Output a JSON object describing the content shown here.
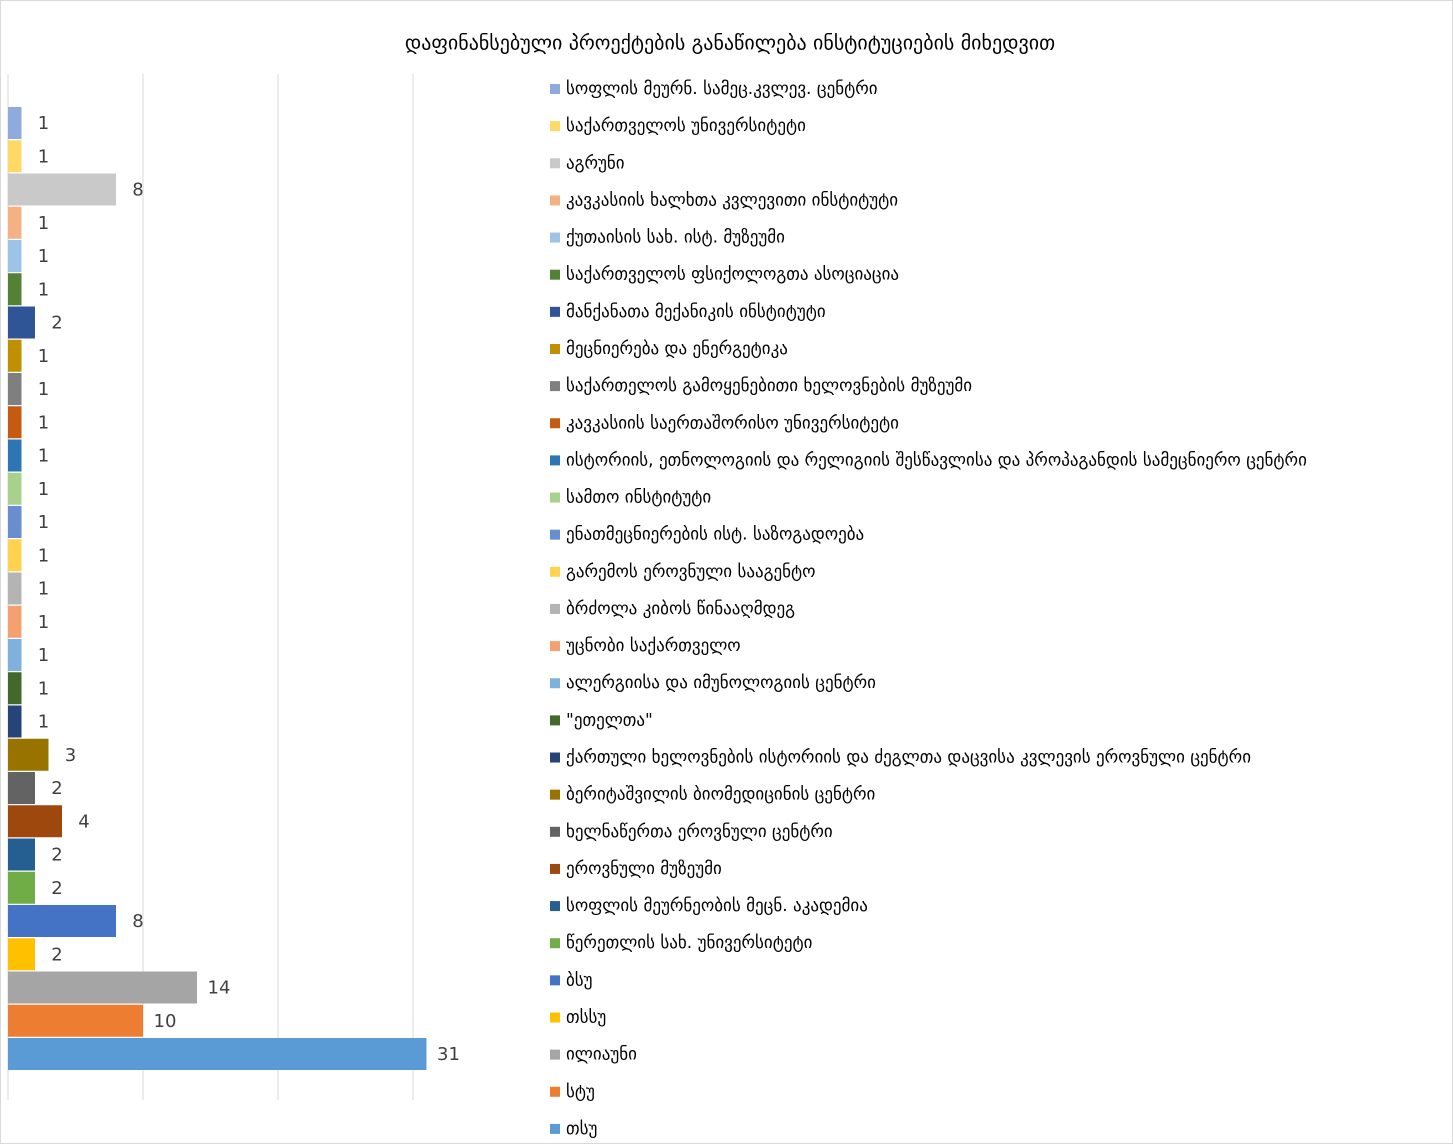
{
  "chart_data": {
    "type": "bar",
    "orientation": "horizontal",
    "title": "დაფინანსებული პროექტების განაწილება ინსტიტუციების მიხედვით",
    "xlim": [
      0,
      35
    ],
    "xticks": [
      0,
      10,
      20,
      30
    ],
    "grid": true,
    "legend": "right",
    "series": [
      {
        "name": "სოფლის მეურნ. სამეც.კვლევ. ცენტრი",
        "color": "#8faadc",
        "values": [
          1
        ]
      },
      {
        "name": "საქართველოს უნივერსიტეტი",
        "color": "#ffd966",
        "values": [
          1
        ]
      },
      {
        "name": "აგრუნი",
        "color": "#c9c9c9",
        "values": [
          8
        ]
      },
      {
        "name": "კავკასიის ხალხთა კვლევითი ინსტიტუტი",
        "color": "#f4b183",
        "values": [
          1
        ]
      },
      {
        "name": "ქუთაისის სახ. ისტ. მუზეუმი",
        "color": "#9dc3e6",
        "values": [
          1
        ]
      },
      {
        "name": "საქართველოს ფსიქოლოგთა ასოციაცია",
        "color": "#548235",
        "values": [
          1
        ]
      },
      {
        "name": "მანქანათა მექანიკის ინსტიტუტი",
        "color": "#2f5597",
        "values": [
          2
        ]
      },
      {
        "name": "მეცნიერება და ენერგეტიკა",
        "color": "#bf9000",
        "values": [
          1
        ]
      },
      {
        "name": "საქართელოს გამოყენებითი ხელოვნების მუზეუმი",
        "color": "#7f7f7f",
        "values": [
          1
        ]
      },
      {
        "name": "კავკასიის საერთაშორისო უნივერსიტეტი",
        "color": "#c55a11",
        "values": [
          1
        ]
      },
      {
        "name": "ისტორიის, ეთნოლოგიის და რელიგიის შესწავლისა და პროპაგანდის სამეცნიერო ცენტრი",
        "color": "#2e75b6",
        "values": [
          1
        ]
      },
      {
        "name": "სამთო ინსტიტუტი",
        "color": "#a9d18e",
        "values": [
          1
        ]
      },
      {
        "name": "ენათმეცნიერების ისტ. საზოგადოება",
        "color": "#698ed0",
        "values": [
          1
        ]
      },
      {
        "name": "გარემოს ეროვნული სააგენტო",
        "color": "#ffd34f",
        "values": [
          1
        ]
      },
      {
        "name": "ბრძოლა კიბოს წინააღმდეგ",
        "color": "#b4b4b4",
        "values": [
          1
        ]
      },
      {
        "name": " უცნობი საქართველო",
        "color": "#f4a070",
        "values": [
          1
        ]
      },
      {
        "name": "ალერგიისა და იმუნოლოგიის ცენტრი",
        "color": "#7fb1dd",
        "values": [
          1
        ]
      },
      {
        "name": "\"ეთელთა\"",
        "color": "#43682b",
        "values": [
          1
        ]
      },
      {
        "name": "ქართული ხელოვნების ისტორიის და ძეგლთა დაცვისა კვლევის ეროვნული ცენტრი",
        "color": "#264478",
        "values": [
          1
        ]
      },
      {
        "name": " ბერიტაშვილის ბიომედიცინის ცენტრი",
        "color": "#997300",
        "values": [
          3
        ]
      },
      {
        "name": "ხელნაწერთა ეროვნული ცენტრი",
        "color": "#636363",
        "values": [
          2
        ]
      },
      {
        "name": "ეროვნული მუზეუმი",
        "color": "#9e480e",
        "values": [
          4
        ]
      },
      {
        "name": " სოფლის მეურნეობის მეცნ. აკადემია",
        "color": "#255e91",
        "values": [
          2
        ]
      },
      {
        "name": " წერეთლის სახ. უნივერსიტეტი",
        "color": "#70ad47",
        "values": [
          2
        ]
      },
      {
        "name": "ბსუ",
        "color": "#4472c4",
        "values": [
          8
        ]
      },
      {
        "name": "თსსუ",
        "color": "#ffc000",
        "values": [
          2
        ]
      },
      {
        "name": "ილიაუნი",
        "color": "#a5a5a5",
        "values": [
          14
        ]
      },
      {
        "name": "სტუ",
        "color": "#ed7d31",
        "values": [
          10
        ]
      },
      {
        "name": "თსუ",
        "color": "#5b9bd5",
        "values": [
          31
        ]
      }
    ]
  }
}
